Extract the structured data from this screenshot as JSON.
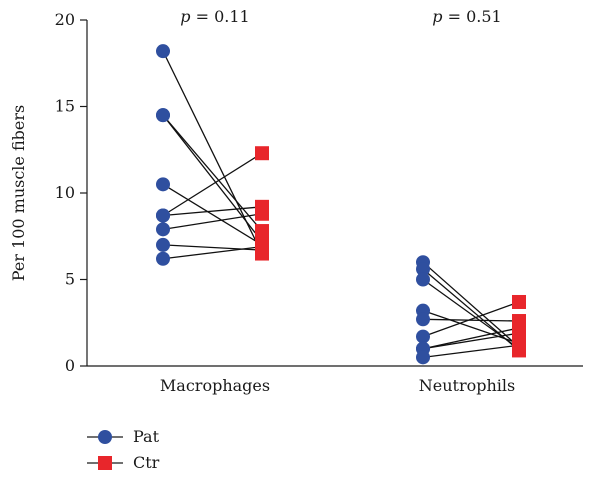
{
  "chart_data": {
    "type": "scatter",
    "title": "",
    "ylabel": "Per 100 muscle fibers",
    "xlabel": "",
    "ylim": [
      0,
      20
    ],
    "yticks": [
      0,
      5,
      10,
      15,
      20
    ],
    "categories": [
      "Macrophages",
      "Neutrophils"
    ],
    "p_values": [
      {
        "symbol": "p",
        "text": "= 0.11"
      },
      {
        "symbol": "p",
        "text": "= 0.51"
      }
    ],
    "series": [
      {
        "name": "Pat",
        "color": "#2f4f9f",
        "marker": "circle"
      },
      {
        "name": "Ctr",
        "color": "#e8262b",
        "marker": "square"
      }
    ],
    "pairs": [
      {
        "category": "Macrophages",
        "pat": [
          18.2,
          14.5,
          14.5,
          10.5,
          8.7,
          8.7,
          7.9,
          7.0,
          6.2
        ],
        "ctr": [
          6.5,
          7.2,
          7.8,
          7.0,
          12.3,
          9.2,
          8.8,
          6.7,
          6.9
        ]
      },
      {
        "category": "Neutrophils",
        "pat": [
          6.0,
          5.6,
          5.0,
          3.2,
          2.7,
          1.7,
          1.0,
          1.0,
          0.5
        ],
        "ctr": [
          1.1,
          0.9,
          1.0,
          1.3,
          2.6,
          3.7,
          2.2,
          1.9,
          1.2
        ]
      }
    ],
    "legend": {
      "position": "bottom-left",
      "entries": [
        "Pat",
        "Ctr"
      ]
    }
  }
}
